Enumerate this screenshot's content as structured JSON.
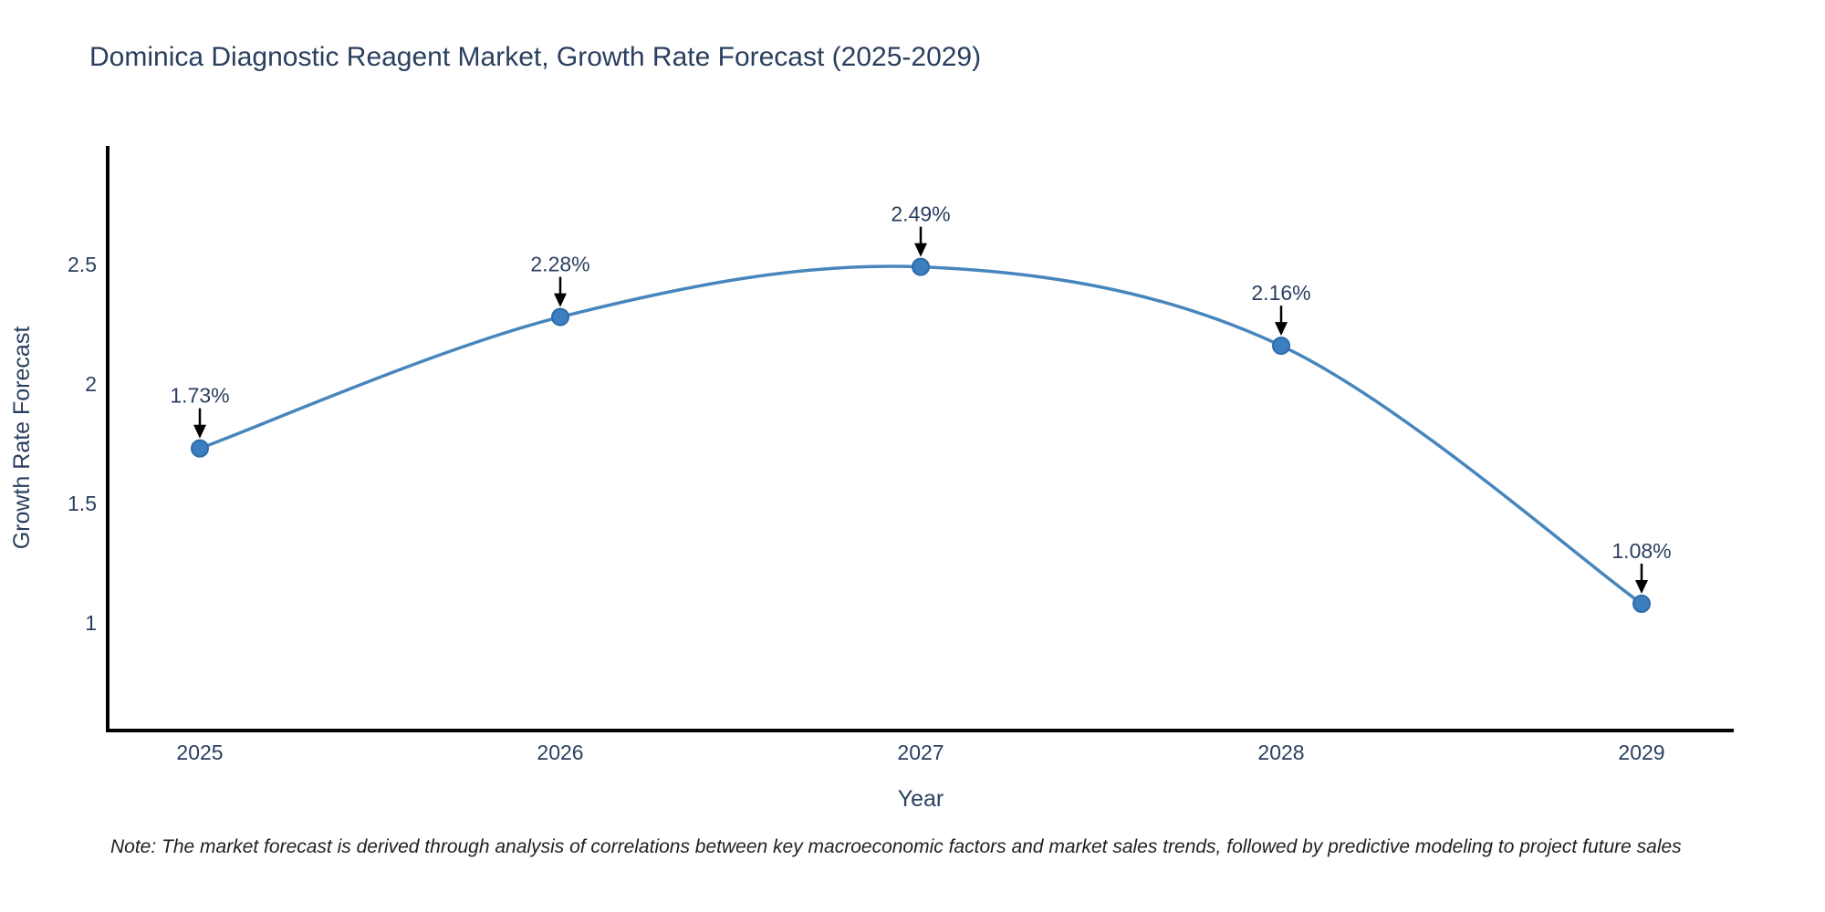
{
  "title": "Dominica Diagnostic Reagent Market, Growth Rate Forecast (2025-2029)",
  "note": "Note: The market forecast is derived through analysis of correlations between key macroeconomic factors and market sales trends, followed by predictive modeling to project future sales",
  "chart_data": {
    "type": "line",
    "title": "Dominica Diagnostic Reagent Market, Growth Rate Forecast (2025-2029)",
    "x": [
      2025,
      2026,
      2027,
      2028,
      2029
    ],
    "xticks": [
      "2025",
      "2026",
      "2027",
      "2028",
      "2029"
    ],
    "y": [
      1.73,
      2.28,
      2.49,
      2.16,
      1.08
    ],
    "point_labels": [
      "1.73%",
      "2.28%",
      "2.49%",
      "2.16%",
      "1.08%"
    ],
    "series_name": "Growth Rate Forecast",
    "xlabel": "Year",
    "ylabel": "Growth Rate Forecast",
    "yticks": [
      1,
      1.5,
      2,
      2.5
    ],
    "ylim": [
      0.55,
      3.0
    ],
    "grid": false,
    "legend": "none",
    "line_shape": "spline",
    "colors": {
      "line": "#4786bd",
      "marker": "#3b7fc0",
      "marker_edge": "#2d6ba8",
      "annotation_text": "#2a3f5f",
      "annotation_arrow": "#000000",
      "axis_line": "#000000",
      "tick_text": "#2a3f5f",
      "title_text": "#2a3f5f",
      "background": "#ffffff"
    }
  }
}
